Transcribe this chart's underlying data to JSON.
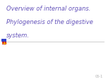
{
  "title_line1": "Overview of internal organs.",
  "title_line2": "Phylogenesis of the digestive",
  "title_line3": "system.",
  "text_color": "#6655bb",
  "bg_color": "#ffffff",
  "square_blue": "#3344cc",
  "square_red": "#cc2222",
  "square_yellow": "#ffcc00",
  "line_color": "#bbbbbb",
  "slide_number": "05-1",
  "font_size": 6.0
}
